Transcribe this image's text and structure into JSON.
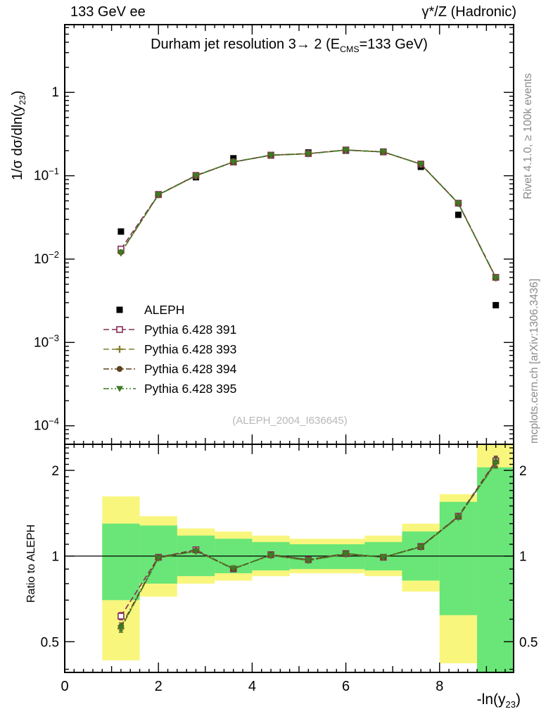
{
  "header": {
    "left": "133 GeV ee",
    "right": "γ*/Z (Hadronic)"
  },
  "title": {
    "pre": "Durham jet resolution 3→ 2 (E",
    "sub": "CMS",
    "post": "=133 GeV)"
  },
  "watermark": "(ALEPH_2004_I636645)",
  "side_notes": {
    "top": "Rivet 4.1.0, ≥ 100k events",
    "bottom": "mcplots.cern.ch [arXiv:1306.3436]"
  },
  "axes": {
    "ylabel_main": {
      "pre": "1/σ  dσ/dln(y",
      "sub": "23",
      "post": ")"
    },
    "ylabel_ratio": "Ratio to ALEPH",
    "xlabel": {
      "pre": "-ln(y",
      "sub": "23",
      "post": ")"
    }
  },
  "chart_data": {
    "type": "scatter+line, two stacked panels, log y axes, ratio panel with uncertainty bands",
    "x": [
      1.2,
      2.0,
      2.8,
      3.6,
      4.4,
      5.2,
      6.0,
      6.8,
      7.6,
      8.4,
      9.2
    ],
    "xlim": [
      0,
      9.58
    ],
    "xticks": [
      {
        "v": 0,
        "label": "0"
      },
      {
        "v": 2,
        "label": "2"
      },
      {
        "v": 4,
        "label": "4"
      },
      {
        "v": 6,
        "label": "6"
      },
      {
        "v": 8,
        "label": "8"
      }
    ],
    "main": {
      "ylim": [
        6e-05,
        6.5
      ],
      "yticks": [
        {
          "v": 1,
          "label": "1"
        },
        {
          "v": 0.1,
          "exp": "−1"
        },
        {
          "v": 0.01,
          "exp": "−2"
        },
        {
          "v": 0.001,
          "exp": "−3"
        },
        {
          "v": 0.0001,
          "exp": "−4"
        }
      ],
      "series": [
        {
          "name": "ALEPH",
          "marker": "filled-square",
          "color": "#000000",
          "values": [
            0.0214,
            0.06,
            0.096,
            0.162,
            0.175,
            0.19,
            0.2,
            0.195,
            0.128,
            0.034,
            0.0028
          ]
        },
        {
          "name": "Pythia 6.428 391",
          "marker": "open-square",
          "color": "#862d59",
          "dash": [
            8,
            4
          ],
          "values": [
            0.0132,
            0.0594,
            0.101,
            0.146,
            0.177,
            0.1845,
            0.204,
            0.193,
            0.1382,
            0.0469,
            0.00604
          ]
        },
        {
          "name": "Pythia 6.428 393",
          "marker": "open-cross",
          "color": "#7f7f2d",
          "dash": [
            8,
            4
          ],
          "values": [
            0.0119,
            0.0591,
            0.0998,
            0.1466,
            0.1759,
            0.1834,
            0.203,
            0.1931,
            0.1376,
            0.0466,
            0.00594
          ]
        },
        {
          "name": "Pythia 6.428 394",
          "marker": "filled-circle",
          "color": "#5e4422",
          "dash": [
            8,
            3,
            2,
            3
          ],
          "values": [
            0.0121,
            0.0594,
            0.1003,
            0.1458,
            0.1768,
            0.1843,
            0.204,
            0.1931,
            0.1382,
            0.0468,
            0.00599
          ]
        },
        {
          "name": "Pythia 6.428 395",
          "marker": "filled-triangle-down",
          "color": "#3b7d23",
          "dash": [
            8,
            3,
            2,
            3,
            2,
            3
          ],
          "values": [
            0.012,
            0.0591,
            0.0998,
            0.1466,
            0.1759,
            0.1834,
            0.203,
            0.1931,
            0.1376,
            0.0466,
            0.00594
          ]
        }
      ]
    },
    "ratio": {
      "ylim": [
        0.39,
        2.47
      ],
      "yticks": [
        {
          "v": 0.5,
          "label": "0.5"
        },
        {
          "v": 1,
          "label": "1"
        },
        {
          "v": 2,
          "label": "2"
        }
      ],
      "bin_edges": [
        0.8,
        1.6,
        2.4,
        3.2,
        4.0,
        4.8,
        5.6,
        6.4,
        7.2,
        8.0,
        8.8,
        9.6
      ],
      "bands": {
        "outer_color": "#f9f67e",
        "inner_color": "#69e677",
        "outer": [
          [
            0.43,
            1.62
          ],
          [
            0.72,
            1.38
          ],
          [
            0.8,
            1.25
          ],
          [
            0.82,
            1.22
          ],
          [
            0.85,
            1.18
          ],
          [
            0.87,
            1.15
          ],
          [
            0.87,
            1.15
          ],
          [
            0.85,
            1.18
          ],
          [
            0.75,
            1.3
          ],
          [
            0.42,
            1.65
          ],
          [
            0.39,
            2.47
          ]
        ],
        "inner": [
          [
            0.7,
            1.3
          ],
          [
            0.8,
            1.28
          ],
          [
            0.85,
            1.18
          ],
          [
            0.87,
            1.15
          ],
          [
            0.89,
            1.12
          ],
          [
            0.9,
            1.1
          ],
          [
            0.9,
            1.1
          ],
          [
            0.89,
            1.12
          ],
          [
            0.82,
            1.22
          ],
          [
            0.62,
            1.55
          ],
          [
            0.39,
            2.05
          ]
        ]
      },
      "series": [
        {
          "name": "Pythia 6.428 391",
          "values": [
            0.615,
            0.99,
            1.052,
            0.901,
            1.011,
            0.971,
            1.02,
            0.99,
            1.08,
            1.38,
            2.158
          ]
        },
        {
          "name": "Pythia 6.428 393",
          "values": [
            0.556,
            0.985,
            1.04,
            0.905,
            1.005,
            0.965,
            1.015,
            0.99,
            1.075,
            1.37,
            2.12
          ]
        },
        {
          "name": "Pythia 6.428 394",
          "values": [
            0.565,
            0.99,
            1.045,
            0.9,
            1.01,
            0.97,
            1.02,
            0.99,
            1.08,
            1.375,
            2.14
          ]
        },
        {
          "name": "Pythia 6.428 395",
          "values": [
            0.558,
            0.985,
            1.04,
            0.905,
            1.005,
            0.965,
            1.015,
            0.99,
            1.075,
            1.37,
            2.12
          ]
        }
      ],
      "rel_err": [
        0.03,
        0.01,
        0.01,
        0.01,
        0.01,
        0.01,
        0.01,
        0.01,
        0.012,
        0.025,
        0.04
      ]
    }
  }
}
